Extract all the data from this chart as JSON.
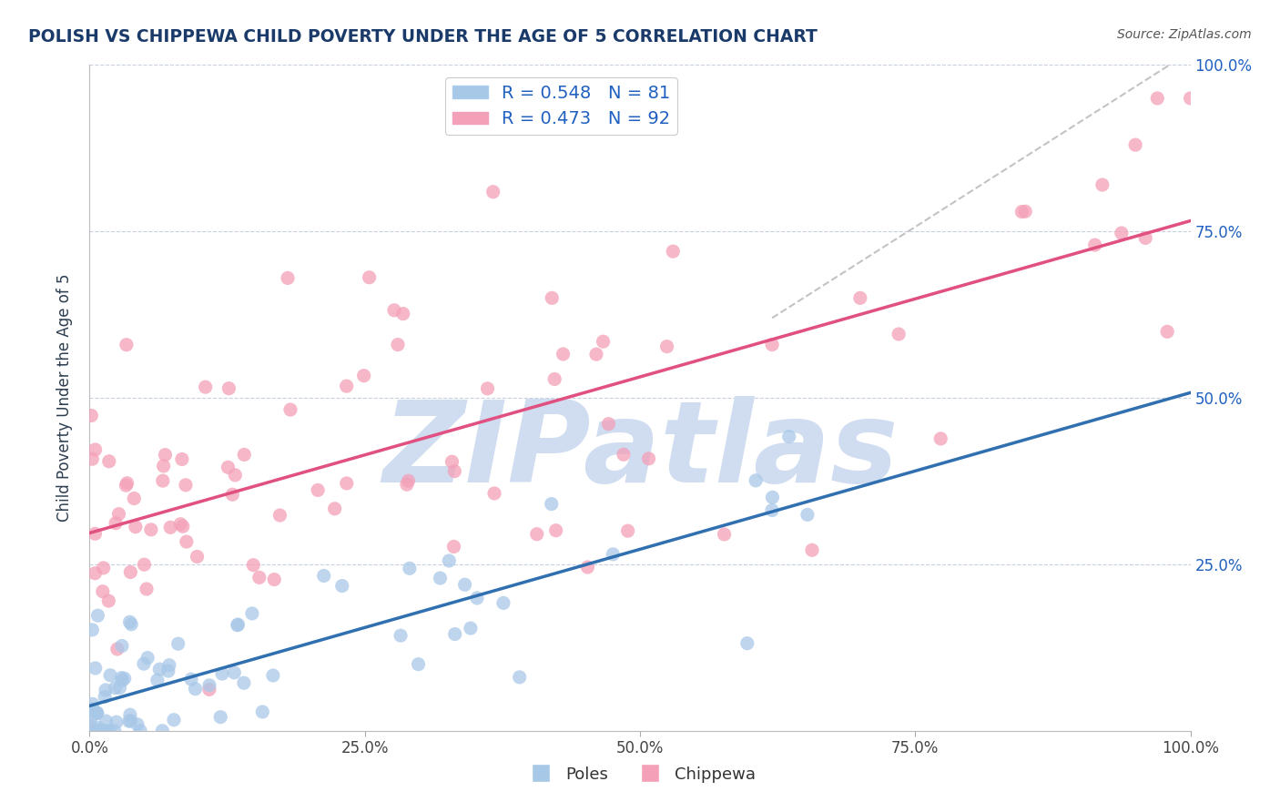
{
  "title": "POLISH VS CHIPPEWA CHILD POVERTY UNDER THE AGE OF 5 CORRELATION CHART",
  "source": "Source: ZipAtlas.com",
  "ylabel": "Child Poverty Under the Age of 5",
  "legend_labels": [
    "Poles",
    "Chippewa"
  ],
  "r_poles": 0.548,
  "n_poles": 81,
  "r_chippewa": 0.473,
  "n_chippewa": 92,
  "blue_color": "#a8c8e8",
  "pink_color": "#f4a0b8",
  "blue_line_color": "#3070b0",
  "pink_line_color": "#e05080",
  "watermark": "ZIPatlas",
  "watermark_color": "#d0ddf0",
  "background_color": "#ffffff",
  "grid_color": "#c8d0e0",
  "title_color": "#1a3a6a",
  "axis_label_color": "#2c3e50",
  "legend_text_color": "#2060c0",
  "source_color": "#555555"
}
